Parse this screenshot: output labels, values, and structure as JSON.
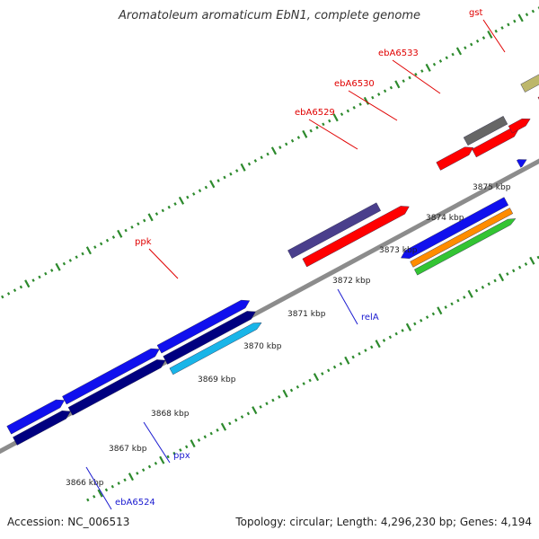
{
  "title": "Aromatoleum aromaticum EbN1, complete genome",
  "footer": {
    "accession": "Accession: NC_006513",
    "summary": "Topology: circular; Length: 4,296,230 bp; Genes: 4,194"
  },
  "colors": {
    "backbone": "#8c8c8c",
    "tick": "#2d8a2d",
    "label_red": "#e00000",
    "label_blue": "#1a1ad0",
    "red": "#ff0000",
    "blue": "#1010ee",
    "navy": "#000080",
    "grey": "#666666",
    "slate": "#4a3f8c",
    "khaki": "#bdb76b",
    "orange": "#ff8c00",
    "green": "#33c433",
    "cyan": "#19b5e8"
  },
  "scale_labels": [
    "3866 kbp",
    "3867 kbp",
    "3868 kbp",
    "3869 kbp",
    "3870 kbp",
    "3871 kbp",
    "3872 kbp",
    "3873 kbp",
    "3874 kbp",
    "3875 kbp"
  ],
  "gene_labels": [
    "gst",
    "ebA6533",
    "ebA6530",
    "ebA6529",
    "ppk",
    "relA",
    "ppx",
    "ebA6524"
  ]
}
